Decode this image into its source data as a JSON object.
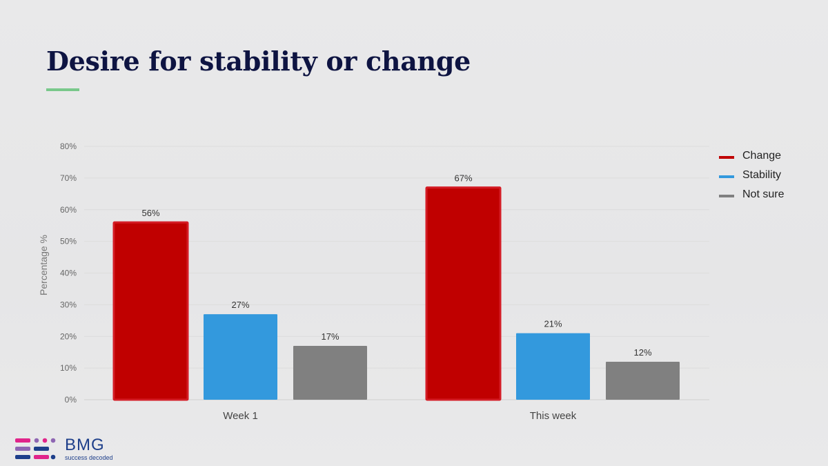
{
  "slide": {
    "title": "Desire for stability or change"
  },
  "brand": {
    "name": "BMG",
    "tagline": "success decoded",
    "colors": {
      "navy": "#1d3e8a",
      "pink": "#e0248a",
      "purple": "#8e66b3",
      "accent_green": "#79c88b"
    }
  },
  "chart_data": {
    "type": "bar",
    "categories": [
      "Week 1",
      "This week"
    ],
    "series": [
      {
        "name": "Change",
        "values": [
          56,
          67
        ],
        "color": "#c00000"
      },
      {
        "name": "Stability",
        "values": [
          27,
          21
        ],
        "color": "#3399dd"
      },
      {
        "name": "Not sure",
        "values": [
          17,
          12
        ],
        "color": "#808080"
      }
    ],
    "data_labels": [
      [
        "56%",
        "67%"
      ],
      [
        "27%",
        "21%"
      ],
      [
        "17%",
        "12%"
      ]
    ],
    "ylabel": "Percentage %",
    "xlabel": "",
    "ylim": [
      0,
      80
    ],
    "yticks": [
      "0%",
      "10%",
      "20%",
      "30%",
      "40%",
      "50%",
      "60%",
      "70%",
      "80%"
    ],
    "grid": true,
    "legend_position": "right"
  }
}
